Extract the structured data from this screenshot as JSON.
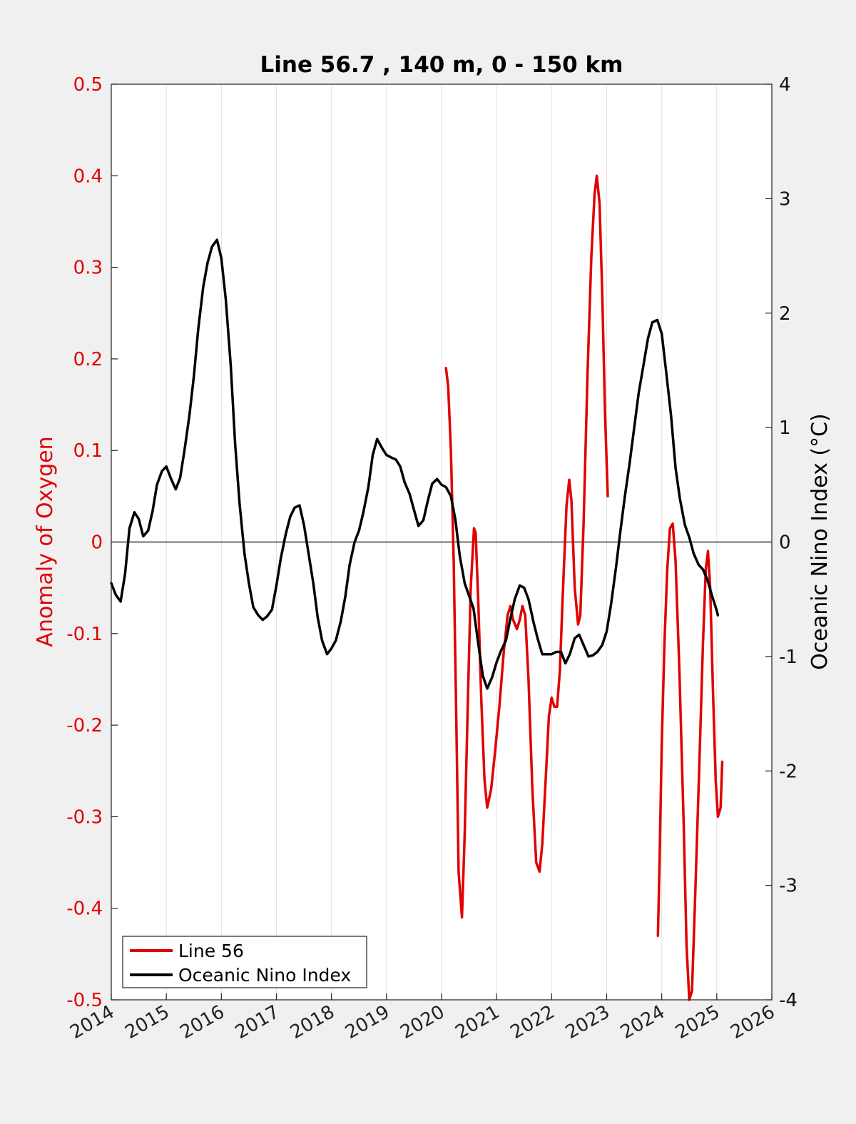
{
  "chart_data": {
    "type": "line",
    "title": "Line 56.7 , 140 m, 0 - 150 km",
    "ylabel_left": "Anomaly of Oxygen",
    "ylabel_right": "Oceanic Nino Index (°C)",
    "xlim": [
      2014,
      2026
    ],
    "ylim_left": [
      -0.5,
      0.5
    ],
    "ylim_right": [
      -4,
      4
    ],
    "x_ticks": [
      2014,
      2015,
      2016,
      2017,
      2018,
      2019,
      2020,
      2021,
      2022,
      2023,
      2024,
      2025,
      2026
    ],
    "x_tick_labels": [
      "2014",
      "2015",
      "2016",
      "2017",
      "2018",
      "2019",
      "2020",
      "2021",
      "2022",
      "2023",
      "2024",
      "2025",
      "2026"
    ],
    "y_left_tick_labels": [
      "0.5",
      "0.4",
      "0.3",
      "0.2",
      "0.1",
      "0",
      "-0.1",
      "-0.2",
      "-0.3",
      "-0.4",
      "-0.5"
    ],
    "y_right_tick_labels": [
      "4",
      "3",
      "2",
      "1",
      "0",
      "-1",
      "-2",
      "-3",
      "-4"
    ],
    "grid": "vertical",
    "zero_line": true,
    "legend_placement": "bottom-left",
    "series": [
      {
        "name": "Line 56",
        "axis": "left",
        "color": "#e00000",
        "segments": [
          [
            [
              2020.08,
              0.19
            ],
            [
              2020.12,
              0.17
            ],
            [
              2020.17,
              0.1
            ],
            [
              2020.22,
              -0.02
            ],
            [
              2020.27,
              -0.2
            ],
            [
              2020.31,
              -0.36
            ],
            [
              2020.37,
              -0.41
            ],
            [
              2020.42,
              -0.32
            ],
            [
              2020.48,
              -0.17
            ],
            [
              2020.53,
              -0.05
            ],
            [
              2020.59,
              0.015
            ],
            [
              2020.62,
              0.01
            ],
            [
              2020.67,
              -0.07
            ],
            [
              2020.72,
              -0.17
            ],
            [
              2020.78,
              -0.26
            ],
            [
              2020.83,
              -0.29
            ],
            [
              2020.9,
              -0.27
            ],
            [
              2020.97,
              -0.23
            ],
            [
              2021.05,
              -0.18
            ],
            [
              2021.13,
              -0.12
            ],
            [
              2021.2,
              -0.08
            ],
            [
              2021.25,
              -0.07
            ],
            [
              2021.3,
              -0.085
            ],
            [
              2021.37,
              -0.095
            ],
            [
              2021.42,
              -0.085
            ],
            [
              2021.47,
              -0.07
            ],
            [
              2021.52,
              -0.08
            ],
            [
              2021.58,
              -0.15
            ],
            [
              2021.65,
              -0.27
            ],
            [
              2021.72,
              -0.35
            ],
            [
              2021.78,
              -0.36
            ],
            [
              2021.83,
              -0.33
            ],
            [
              2021.9,
              -0.25
            ],
            [
              2021.95,
              -0.19
            ],
            [
              2022.0,
              -0.17
            ],
            [
              2022.05,
              -0.18
            ],
            [
              2022.1,
              -0.18
            ],
            [
              2022.15,
              -0.14
            ],
            [
              2022.2,
              -0.06
            ],
            [
              2022.27,
              0.04
            ],
            [
              2022.32,
              0.068
            ],
            [
              2022.36,
              0.045
            ],
            [
              2022.42,
              -0.05
            ],
            [
              2022.48,
              -0.09
            ],
            [
              2022.52,
              -0.08
            ],
            [
              2022.58,
              0.02
            ],
            [
              2022.65,
              0.18
            ],
            [
              2022.72,
              0.31
            ],
            [
              2022.78,
              0.38
            ],
            [
              2022.82,
              0.4
            ],
            [
              2022.87,
              0.37
            ],
            [
              2022.92,
              0.27
            ],
            [
              2022.97,
              0.14
            ],
            [
              2023.02,
              0.05
            ]
          ],
          [
            [
              2023.93,
              -0.43
            ],
            [
              2023.96,
              -0.35
            ],
            [
              2024.0,
              -0.22
            ],
            [
              2024.05,
              -0.11
            ],
            [
              2024.1,
              -0.03
            ],
            [
              2024.15,
              0.015
            ],
            [
              2024.2,
              0.02
            ],
            [
              2024.25,
              -0.02
            ],
            [
              2024.32,
              -0.14
            ],
            [
              2024.4,
              -0.31
            ],
            [
              2024.45,
              -0.44
            ],
            [
              2024.5,
              -0.5
            ],
            [
              2024.55,
              -0.49
            ],
            [
              2024.6,
              -0.4
            ],
            [
              2024.68,
              -0.25
            ],
            [
              2024.75,
              -0.11
            ],
            [
              2024.8,
              -0.03
            ],
            [
              2024.84,
              -0.01
            ],
            [
              2024.88,
              -0.05
            ],
            [
              2024.93,
              -0.16
            ],
            [
              2024.98,
              -0.26
            ],
            [
              2025.02,
              -0.3
            ],
            [
              2025.07,
              -0.29
            ],
            [
              2025.1,
              -0.24
            ]
          ]
        ]
      },
      {
        "name": "Oceanic Nino Index",
        "axis": "right",
        "color": "#000000",
        "x": [
          2014.0,
          2014.08,
          2014.17,
          2014.25,
          2014.33,
          2014.42,
          2014.5,
          2014.58,
          2014.67,
          2014.75,
          2014.83,
          2014.92,
          2015.0,
          2015.08,
          2015.17,
          2015.25,
          2015.33,
          2015.42,
          2015.5,
          2015.58,
          2015.67,
          2015.75,
          2015.83,
          2015.92,
          2016.0,
          2016.08,
          2016.17,
          2016.25,
          2016.33,
          2016.42,
          2016.5,
          2016.58,
          2016.67,
          2016.75,
          2016.83,
          2016.92,
          2017.0,
          2017.08,
          2017.17,
          2017.25,
          2017.33,
          2017.42,
          2017.5,
          2017.58,
          2017.67,
          2017.75,
          2017.83,
          2017.92,
          2018.0,
          2018.08,
          2018.17,
          2018.25,
          2018.33,
          2018.42,
          2018.5,
          2018.58,
          2018.67,
          2018.75,
          2018.83,
          2018.92,
          2019.0,
          2019.08,
          2019.17,
          2019.25,
          2019.33,
          2019.42,
          2019.5,
          2019.58,
          2019.67,
          2019.75,
          2019.83,
          2019.92,
          2020.0,
          2020.08,
          2020.17,
          2020.25,
          2020.33,
          2020.42,
          2020.5,
          2020.58,
          2020.67,
          2020.75,
          2020.83,
          2020.92,
          2021.0,
          2021.08,
          2021.17,
          2021.25,
          2021.33,
          2021.42,
          2021.5,
          2021.58,
          2021.67,
          2021.75,
          2021.83,
          2021.92,
          2022.0,
          2022.08,
          2022.17,
          2022.25,
          2022.33,
          2022.42,
          2022.5,
          2022.58,
          2022.67,
          2022.75,
          2022.83,
          2022.92,
          2023.0,
          2023.08,
          2023.17,
          2023.25,
          2023.33,
          2023.42,
          2023.5,
          2023.58,
          2023.67,
          2023.75,
          2023.83,
          2023.92,
          2024.0,
          2024.08,
          2024.17,
          2024.25,
          2024.33,
          2024.42,
          2024.5,
          2024.58,
          2024.67,
          2024.75,
          2024.83,
          2024.92,
          2025.0,
          2025.02
        ],
        "values": [
          -0.36,
          -0.46,
          -0.52,
          -0.28,
          0.12,
          0.26,
          0.2,
          0.05,
          0.1,
          0.27,
          0.5,
          0.62,
          0.66,
          0.56,
          0.46,
          0.56,
          0.8,
          1.11,
          1.45,
          1.86,
          2.23,
          2.44,
          2.58,
          2.64,
          2.48,
          2.12,
          1.54,
          0.86,
          0.34,
          -0.1,
          -0.36,
          -0.57,
          -0.64,
          -0.68,
          -0.65,
          -0.59,
          -0.38,
          -0.14,
          0.07,
          0.22,
          0.3,
          0.32,
          0.15,
          -0.09,
          -0.36,
          -0.66,
          -0.86,
          -0.98,
          -0.93,
          -0.86,
          -0.69,
          -0.48,
          -0.2,
          0.0,
          0.1,
          0.26,
          0.48,
          0.76,
          0.9,
          0.82,
          0.76,
          0.74,
          0.72,
          0.66,
          0.52,
          0.42,
          0.28,
          0.14,
          0.19,
          0.36,
          0.51,
          0.55,
          0.5,
          0.48,
          0.4,
          0.2,
          -0.12,
          -0.36,
          -0.47,
          -0.58,
          -0.9,
          -1.17,
          -1.28,
          -1.18,
          -1.05,
          -0.95,
          -0.86,
          -0.67,
          -0.5,
          -0.38,
          -0.4,
          -0.5,
          -0.7,
          -0.85,
          -0.98,
          -0.98,
          -0.98,
          -0.96,
          -0.96,
          -1.06,
          -0.98,
          -0.84,
          -0.81,
          -0.9,
          -1.0,
          -0.99,
          -0.96,
          -0.9,
          -0.78,
          -0.54,
          -0.22,
          0.1,
          0.4,
          0.7,
          1.0,
          1.3,
          1.55,
          1.78,
          1.92,
          1.94,
          1.82,
          1.49,
          1.1,
          0.65,
          0.38,
          0.15,
          0.04,
          -0.1,
          -0.2,
          -0.24,
          -0.33,
          -0.48,
          -0.6,
          -0.64
        ]
      }
    ]
  }
}
